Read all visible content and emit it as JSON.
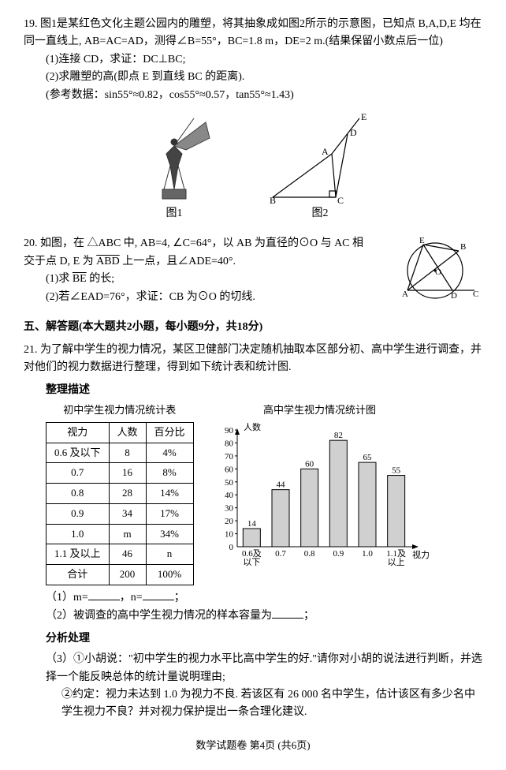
{
  "q19": {
    "num": "19.",
    "text": "图1是某红色文化主题公园内的雕塑，将其抽象成如图2所示的示意图，已知点 B,A,D,E 均在同一直线上, AB=AC=AD，测得∠B=55°，BC=1.8 m，DE=2 m.(结果保留小数点后一位)",
    "part1": "(1)连接 CD，求证：DC⊥BC;",
    "part2": "(2)求雕塑的高(即点 E 到直线 BC 的距离).",
    "ref": "(参考数据：sin55°≈0.82，cos55°≈0.57，tan55°≈1.43)",
    "fig1": "图1",
    "fig2": "图2"
  },
  "q20": {
    "num": "20.",
    "text1": "如图，在 △ABC 中, AB=4, ∠C=64°，以 AB 为直径的⊙O 与 AC 相交于点 D, E 为 ",
    "arc": "ABD",
    "text2": " 上一点，且∠ADE=40°.",
    "part1_a": "(1)求 ",
    "part1_arc": "BE",
    "part1_b": " 的长;",
    "part2": "(2)若∠EAD=76°，求证：CB 为⊙O 的切线."
  },
  "sec5": "五、解答题(本大题共2小题，每小题9分，共18分)",
  "q21": {
    "num": "21.",
    "text": "为了解中学生的视力情况，某区卫健部门决定随机抽取本区部分初、高中学生进行调查，并对他们的视力数据进行整理，得到如下统计表和统计图.",
    "sub1": "整理描述",
    "table_title": "初中学生视力情况统计表",
    "table_headers": [
      "视力",
      "人数",
      "百分比"
    ],
    "table_rows": [
      [
        "0.6 及以下",
        "8",
        "4%"
      ],
      [
        "0.7",
        "16",
        "8%"
      ],
      [
        "0.8",
        "28",
        "14%"
      ],
      [
        "0.9",
        "34",
        "17%"
      ],
      [
        "1.0",
        "m",
        "34%"
      ],
      [
        "1.1 及以上",
        "46",
        "n"
      ],
      [
        "合计",
        "200",
        "100%"
      ]
    ],
    "chart": {
      "title": "高中学生视力情况统计图",
      "ylabel": "人数",
      "xlabel": "视力",
      "categories": [
        "0.6及\n以下",
        "0.7",
        "0.8",
        "0.9",
        "1.0",
        "1.1及\n以上"
      ],
      "values": [
        14,
        44,
        60,
        82,
        65,
        55
      ],
      "ylim": [
        0,
        90
      ],
      "ytick_step": 10,
      "bar_color": "#d0d0d0",
      "border_color": "#000000",
      "axis_color": "#000000",
      "font_size": 11
    },
    "p1_a": "（1）m=",
    "p1_b": "，n=",
    "p1_c": "；",
    "p2_a": "（2）被调查的高中学生视力情况的样本容量为",
    "p2_b": "；",
    "sub2": "分析处理",
    "p3": "（3）①小胡说：\"初中学生的视力水平比高中学生的好.\"请你对小胡的说法进行判断，并选择一个能反映总体的统计量说明理由;",
    "p3b": "②约定：视力未达到 1.0 为视力不良. 若该区有 26 000 名中学生，估计该区有多少名中学生视力不良？并对视力保护提出一条合理化建议."
  },
  "footer": "数学试题卷  第4页  (共6页)"
}
